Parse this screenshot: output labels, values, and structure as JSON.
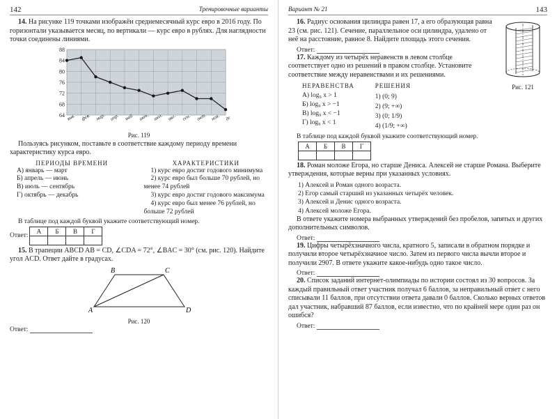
{
  "left": {
    "page_num": "142",
    "header_title": "Тренировочные варианты",
    "p14": {
      "num": "14.",
      "text": "На рисунке 119 точками изображён среднемесячный курс евро в 2016 году. По горизонтали указывается месяц, по вертикали — курс евро в рублях. Для наглядности точки соединены линиями."
    },
    "chart": {
      "caption": "Рис. 119",
      "y_ticks": [
        "88",
        "84",
        "80",
        "76",
        "72",
        "68",
        "64"
      ],
      "y_min": 64,
      "y_max": 88,
      "x_labels": [
        "янв.",
        "фев.",
        "мар.",
        "апр.",
        "май",
        "июн.",
        "июл.",
        "авг.",
        "сен.",
        "окт.",
        "ноя.",
        "дек."
      ],
      "values": [
        84,
        85,
        78,
        76,
        74,
        73,
        71,
        72,
        73,
        70,
        70,
        66
      ],
      "bg": "#cfd4da",
      "grid": "#9aa1ab",
      "line": "#232323",
      "point": "#181818"
    },
    "after_chart": "Пользуясь рисунком, поставьте в соответствие каждому периоду времени характеристику курса евро.",
    "periods_title": "ПЕРИОДЫ ВРЕМЕНИ",
    "periods": [
      "А) январь — март",
      "Б) апрель — июнь",
      "В) июль — сентябрь",
      "Г) октябрь — декабрь"
    ],
    "chars_title": "ХАРАКТЕРИСТИКИ",
    "chars": [
      "1) курс евро достиг годового минимума",
      "2) курс евро был больше 70 рублей, но менее 74 рублей",
      "3) курс евро достиг годового максимума",
      "4) курс евро был менее 76 рублей, но больше 72 рублей"
    ],
    "table_instr": "В таблице под каждой буквой укажите соответствующий номер.",
    "ans_label": "Ответ:",
    "ans_heads": [
      "А",
      "Б",
      "В",
      "Г"
    ],
    "p15": {
      "num": "15.",
      "text": "В трапеции ABCD  AB = CD, ∠CDA = 72°, ∠BAC = 30° (см. рис. 120). Найдите угол ACD. Ответ дайте в градусах."
    },
    "trap_caption": "Рис. 120",
    "trap_labels": {
      "A": "A",
      "B": "B",
      "C": "C",
      "D": "D"
    },
    "answer_word": "Ответ:"
  },
  "right": {
    "header_title": "Вариант № 21",
    "page_num": "143",
    "cyl_caption": "Рис. 121",
    "p16": {
      "num": "16.",
      "text": "Радиус основания цилиндра равен 17, а его образующая равна 23 (см. рис. 121). Сечение, параллельное оси цилиндра, удалено от неё на расстояние, равное 8. Найдите площадь этого сечения."
    },
    "answer_word": "Ответ:",
    "p17": {
      "num": "17.",
      "text": "Каждому из четырёх неравенств в левом столбце соответствует одно из решений в правом столбце. Установите соответствие между неравенствами и их решениями."
    },
    "ineq_title": "НЕРАВЕНСТВА",
    "sol_title": "РЕШЕНИЯ",
    "ineq": [
      "А) log₉ x > 1",
      "Б) log₉ x > −1",
      "В) log₉ x < −1",
      "Г) log₉ x < 1"
    ],
    "sol": [
      "1) (0; 9)",
      "2) (9; +∞)",
      "3) (0; 1/9)",
      "4) (1/9; +∞)"
    ],
    "table_instr": "В таблице под каждой буквой укажите соответствующий номер.",
    "ans_heads": [
      "А",
      "Б",
      "В",
      "Г"
    ],
    "p18": {
      "num": "18.",
      "text": "Роман моложе Егора, но старше Дениса. Алексей не старше Романа. Выберите утверждения, которые верны при указанных условиях.",
      "items": [
        "1) Алексей и Роман одного возраста.",
        "2) Егор самый старший из указанных четырёх человек.",
        "3) Алексей и Денис одного возраста.",
        "4) Алексей моложе Егора."
      ],
      "tail": "В ответе укажите номера выбранных утверждений без пробелов, запятых и других дополнительных символов."
    },
    "p19": {
      "num": "19.",
      "text": "Цифры четырёхзначного числа, кратного 5, записали в обратном порядке и получили второе четырёхзначное число. Затем из первого числа вычли второе и получили 2907. В ответе укажите какое-нибудь одно такое число."
    },
    "p20": {
      "num": "20.",
      "text": "Список заданий интернет-олимпиады по истории состоял из 30 вопросов. За каждый правильный ответ участник получал 6 баллов, за неправильный ответ с него списывали 11 баллов, при отсутствии ответа давали 0 баллов. Сколько верных ответов дал участник, набравший 87 баллов, если известно, что по крайней мере один раз он ошибся?"
    }
  }
}
